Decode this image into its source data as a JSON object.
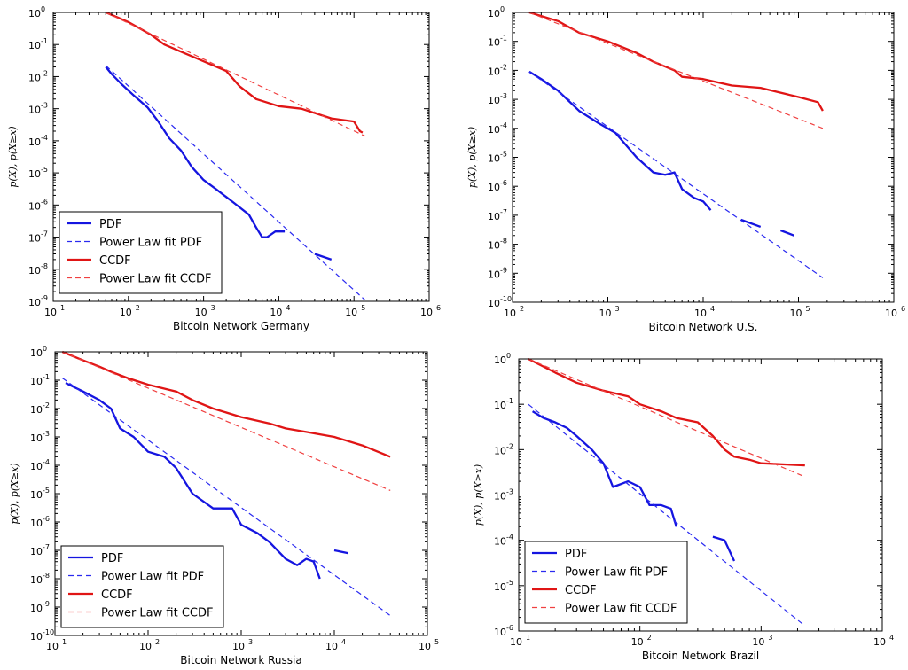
{
  "chart_data": [
    {
      "type": "line",
      "xlabel": "Bitcoin Network Germany",
      "ylabel": "p(X), p(X≥x)",
      "xlog": true,
      "ylog": true,
      "xlim_exp": [
        1,
        6
      ],
      "ylim_exp": [
        -9,
        0
      ],
      "legend_position": "lower-left",
      "legend": [
        "PDF",
        "Power Law fit PDF",
        "CCDF",
        "Power Law fit CCDF"
      ],
      "series": [
        {
          "name": "PDF",
          "style": "solid",
          "color": "#1515e0",
          "points": [
            [
              50,
              0.02
            ],
            [
              60,
              0.012
            ],
            [
              80,
              0.006
            ],
            [
              120,
              0.0025
            ],
            [
              180,
              0.0011
            ],
            [
              250,
              0.0004
            ],
            [
              350,
              0.00012
            ],
            [
              500,
              5e-05
            ],
            [
              700,
              1.5e-05
            ],
            [
              1000,
              6e-06
            ],
            [
              1500,
              3e-06
            ],
            [
              2500,
              1.2e-06
            ],
            [
              4000,
              5e-07
            ],
            [
              5000,
              2e-07
            ],
            [
              6000,
              1e-07
            ],
            [
              7000,
              1e-07
            ],
            [
              9000,
              1.5e-07
            ],
            [
              12000,
              1.5e-07
            ]
          ]
        },
        {
          "name": "PDF tail",
          "style": "solid",
          "color": "#1515e0",
          "points": [
            [
              30000,
              3e-08
            ],
            [
              50000,
              2e-08
            ]
          ]
        },
        {
          "name": "Power Law fit PDF",
          "style": "dashed",
          "color": "#2a2af0",
          "points": [
            [
              50,
              0.022
            ],
            [
              140000,
              1.1e-09
            ]
          ]
        },
        {
          "name": "CCDF",
          "style": "solid",
          "color": "#e01515",
          "points": [
            [
              50,
              1
            ],
            [
              100,
              0.5
            ],
            [
              200,
              0.2
            ],
            [
              300,
              0.1
            ],
            [
              500,
              0.06
            ],
            [
              1000,
              0.03
            ],
            [
              2000,
              0.015
            ],
            [
              3000,
              0.005
            ],
            [
              5000,
              0.002
            ],
            [
              10000,
              0.0012
            ],
            [
              20000,
              0.001
            ],
            [
              50000,
              0.0005
            ],
            [
              100000,
              0.0004
            ],
            [
              120000,
              0.0002
            ],
            [
              130000,
              0.00018
            ]
          ]
        },
        {
          "name": "Power Law fit CCDF",
          "style": "dashed",
          "color": "#f04040",
          "points": [
            [
              50,
              1
            ],
            [
              140000,
              0.00014
            ]
          ]
        }
      ]
    },
    {
      "type": "line",
      "xlabel": "Bitcoin Network U.S.",
      "ylabel": "p(X), p(X≥x)",
      "xlog": true,
      "ylog": true,
      "xlim_exp": [
        2,
        6
      ],
      "ylim_exp": [
        -10,
        0
      ],
      "legend_position": "none",
      "legend": [],
      "series": [
        {
          "name": "PDF",
          "style": "solid",
          "color": "#1515e0",
          "points": [
            [
              150,
              0.009
            ],
            [
              200,
              0.005
            ],
            [
              300,
              0.002
            ],
            [
              500,
              0.0004
            ],
            [
              800,
              0.00015
            ],
            [
              1200,
              7e-05
            ],
            [
              2000,
              1e-05
            ],
            [
              3000,
              3e-06
            ],
            [
              4000,
              2.5e-06
            ],
            [
              5000,
              3e-06
            ],
            [
              6000,
              8e-07
            ],
            [
              8000,
              4e-07
            ],
            [
              10000,
              3e-07
            ],
            [
              12000,
              1.5e-07
            ]
          ]
        },
        {
          "name": "PDF tail 1",
          "style": "solid",
          "color": "#1515e0",
          "points": [
            [
              25000,
              7e-08
            ],
            [
              40000,
              4e-08
            ]
          ]
        },
        {
          "name": "PDF tail 2",
          "style": "solid",
          "color": "#1515e0",
          "points": [
            [
              65000,
              3e-08
            ],
            [
              90000,
              2e-08
            ]
          ]
        },
        {
          "name": "Power Law fit PDF",
          "style": "dashed",
          "color": "#2a2af0",
          "points": [
            [
              150,
              0.009
            ],
            [
              180000,
              7e-10
            ]
          ]
        },
        {
          "name": "CCDF",
          "style": "solid",
          "color": "#e01515",
          "points": [
            [
              150,
              1
            ],
            [
              300,
              0.5
            ],
            [
              500,
              0.2
            ],
            [
              1000,
              0.1
            ],
            [
              2000,
              0.04
            ],
            [
              3000,
              0.02
            ],
            [
              5000,
              0.01
            ],
            [
              6000,
              0.006
            ],
            [
              10000,
              0.005
            ],
            [
              20000,
              0.003
            ],
            [
              40000,
              0.0025
            ],
            [
              60000,
              0.0018
            ],
            [
              100000,
              0.0012
            ],
            [
              160000,
              0.0008
            ],
            [
              180000,
              0.0004
            ]
          ]
        },
        {
          "name": "Power Law fit CCDF",
          "style": "dashed",
          "color": "#f04040",
          "points": [
            [
              150,
              1
            ],
            [
              180000,
              0.0001
            ]
          ]
        }
      ]
    },
    {
      "type": "line",
      "xlabel": "Bitcoin Network Russia",
      "ylabel": "p(X), p(X≥x)",
      "xlog": true,
      "ylog": true,
      "xlim_exp": [
        1,
        5
      ],
      "ylim_exp": [
        -10,
        0
      ],
      "legend_position": "lower-left",
      "legend": [
        "PDF",
        "Power Law fit PDF",
        "CCDF",
        "Power Law fit CCDF"
      ],
      "series": [
        {
          "name": "PDF",
          "style": "solid",
          "color": "#1515e0",
          "points": [
            [
              13,
              0.08
            ],
            [
              20,
              0.04
            ],
            [
              30,
              0.02
            ],
            [
              40,
              0.01
            ],
            [
              50,
              0.002
            ],
            [
              70,
              0.001
            ],
            [
              100,
              0.0003
            ],
            [
              150,
              0.0002
            ],
            [
              200,
              8e-05
            ],
            [
              300,
              1e-05
            ],
            [
              500,
              3e-06
            ],
            [
              800,
              3e-06
            ],
            [
              1000,
              8e-07
            ],
            [
              1500,
              4e-07
            ],
            [
              2000,
              2e-07
            ],
            [
              3000,
              5e-08
            ],
            [
              4000,
              3e-08
            ],
            [
              5000,
              5e-08
            ],
            [
              6000,
              4e-08
            ],
            [
              7000,
              1e-08
            ]
          ]
        },
        {
          "name": "PDF tail",
          "style": "solid",
          "color": "#1515e0",
          "points": [
            [
              10000,
              1e-07
            ],
            [
              14000,
              8e-08
            ]
          ]
        },
        {
          "name": "Power Law fit PDF",
          "style": "dashed",
          "color": "#2a2af0",
          "points": [
            [
              12,
              0.12
            ],
            [
              40000,
              5e-10
            ]
          ]
        },
        {
          "name": "CCDF",
          "style": "solid",
          "color": "#e01515",
          "points": [
            [
              12,
              1
            ],
            [
              20,
              0.5
            ],
            [
              30,
              0.3
            ],
            [
              40,
              0.2
            ],
            [
              60,
              0.12
            ],
            [
              100,
              0.07
            ],
            [
              200,
              0.04
            ],
            [
              300,
              0.02
            ],
            [
              500,
              0.01
            ],
            [
              1000,
              0.005
            ],
            [
              2000,
              0.003
            ],
            [
              3000,
              0.002
            ],
            [
              5000,
              0.0015
            ],
            [
              10000,
              0.001
            ],
            [
              20000,
              0.0005
            ],
            [
              40000,
              0.0002
            ]
          ]
        },
        {
          "name": "Power Law fit CCDF",
          "style": "dashed",
          "color": "#f04040",
          "points": [
            [
              12,
              1
            ],
            [
              40000,
              1.3e-05
            ]
          ]
        }
      ]
    },
    {
      "type": "line",
      "xlabel": "Bitcoin Network Brazil",
      "ylabel": "p(X), p(X≥x)",
      "xlog": true,
      "ylog": true,
      "xlim_exp": [
        1,
        4
      ],
      "ylim_exp": [
        -6,
        0
      ],
      "legend_position": "lower-left",
      "legend": [
        "PDF",
        "Power Law fit PDF",
        "CCDF",
        "Power Law fit CCDF"
      ],
      "series": [
        {
          "name": "PDF",
          "style": "solid",
          "color": "#1515e0",
          "points": [
            [
              13,
              0.07
            ],
            [
              16,
              0.05
            ],
            [
              20,
              0.04
            ],
            [
              25,
              0.03
            ],
            [
              30,
              0.02
            ],
            [
              40,
              0.01
            ],
            [
              50,
              0.005
            ],
            [
              60,
              0.0015
            ],
            [
              80,
              0.002
            ],
            [
              100,
              0.0015
            ],
            [
              120,
              0.0006
            ],
            [
              150,
              0.0006
            ],
            [
              180,
              0.0005
            ],
            [
              200,
              0.0002
            ]
          ]
        },
        {
          "name": "PDF tail",
          "style": "solid",
          "color": "#1515e0",
          "points": [
            [
              400,
              0.00012
            ],
            [
              500,
              0.0001
            ],
            [
              600,
              3.5e-05
            ]
          ]
        },
        {
          "name": "Power Law fit PDF",
          "style": "dashed",
          "color": "#2a2af0",
          "points": [
            [
              12,
              0.1
            ],
            [
              2300,
              1.3e-06
            ]
          ]
        },
        {
          "name": "CCDF",
          "style": "solid",
          "color": "#e01515",
          "points": [
            [
              12,
              1
            ],
            [
              20,
              0.5
            ],
            [
              30,
              0.3
            ],
            [
              50,
              0.2
            ],
            [
              80,
              0.15
            ],
            [
              100,
              0.1
            ],
            [
              150,
              0.07
            ],
            [
              200,
              0.05
            ],
            [
              300,
              0.04
            ],
            [
              400,
              0.02
            ],
            [
              500,
              0.01
            ],
            [
              600,
              0.007
            ],
            [
              800,
              0.006
            ],
            [
              1000,
              0.005
            ],
            [
              2300,
              0.0045
            ]
          ]
        },
        {
          "name": "Power Law fit CCDF",
          "style": "dashed",
          "color": "#f04040",
          "points": [
            [
              12,
              1
            ],
            [
              2300,
              0.0025
            ]
          ]
        }
      ]
    }
  ]
}
